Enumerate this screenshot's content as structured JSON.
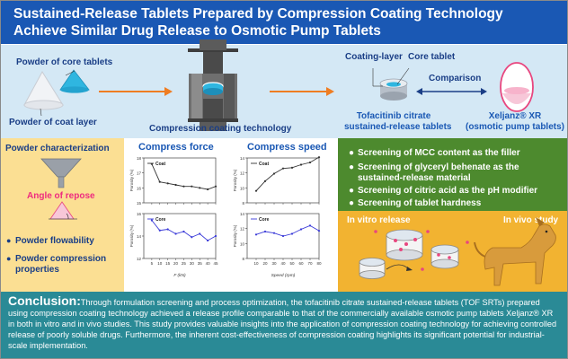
{
  "header": {
    "title": "Sustained-Release Tablets Prepared by Compression Coating Technology Achieve Similar Drug Release to Osmotic Pump Tablets"
  },
  "top": {
    "powder_core": "Powder of core tablets",
    "powder_coat": "Powder of coat layer",
    "compression_label": "Compression coating technology",
    "coating_layer": "Coating-layer",
    "core_tablet": "Core tablet",
    "comparison": "Comparison",
    "tofa_line1": "Tofacitinib citrate",
    "tofa_line2": "sustained-release tablets",
    "xel_line1": "Xeljanz® XR",
    "xel_line2": "(osmotic pump tablets)"
  },
  "powder_panel": {
    "title": "Powder characterization",
    "angle_label": "Angle of repose",
    "items": [
      "Powder flowability",
      "Powder compression properties"
    ]
  },
  "chart_data": [
    {
      "type": "line",
      "title": "Compress force",
      "xlabel": "F (kN)",
      "ylabel": "Porosity (%)",
      "x": [
        5,
        10,
        15,
        20,
        25,
        30,
        35,
        40,
        45
      ],
      "xlim": [
        0,
        45
      ],
      "panels": [
        {
          "series": [
            {
              "name": "Coat",
              "values": [
                17.6,
                16.4,
                16.3,
                16.2,
                16.1,
                16.1,
                16.0,
                15.9,
                16.1
              ]
            }
          ],
          "ylim": [
            15,
            18
          ],
          "yticks": [
            15,
            16,
            17,
            18
          ]
        },
        {
          "series": [
            {
              "name": "Core",
              "values": [
                15.4,
                14.5,
                14.6,
                14.2,
                14.4,
                13.9,
                14.2,
                13.6,
                14.0
              ]
            }
          ],
          "ylim": [
            12,
            16
          ],
          "yticks": [
            12,
            14,
            16
          ]
        }
      ]
    },
    {
      "type": "line",
      "title": "Compress speed",
      "xlabel": "Speed (rpm)",
      "ylabel": "Porosity (%)",
      "x": [
        10,
        20,
        30,
        40,
        50,
        60,
        70,
        80
      ],
      "xlim": [
        0,
        80
      ],
      "panels": [
        {
          "series": [
            {
              "name": "Coat",
              "values": [
                9.6,
                10.9,
                11.9,
                12.6,
                12.7,
                13.1,
                13.4,
                14.1
              ]
            }
          ],
          "ylim": [
            8,
            14
          ],
          "yticks": [
            8,
            10,
            12,
            14
          ]
        },
        {
          "series": [
            {
              "name": "Core",
              "values": [
                11.2,
                11.6,
                11.4,
                11.0,
                11.3,
                11.9,
                12.4,
                11.7
              ]
            }
          ],
          "ylim": [
            8,
            14
          ],
          "yticks": [
            8,
            10,
            12,
            14
          ]
        }
      ]
    }
  ],
  "screening": {
    "items": [
      "Screening of MCC content as the filler",
      "Screening of glyceryl behenate as the sustained-release material",
      "Screening of citric acid as the pH modifier",
      "Screening of tablet hardness"
    ]
  },
  "vivo": {
    "in_vitro": "In vitro release",
    "in_vivo": "In vivo study"
  },
  "conclusion": {
    "lead": "Conclusion:",
    "text": "Through formulation screening and process optimization, the tofacitinib citrate sustained-release tablets (TOF SRTs) prepared using compression coating technology achieved a release profile comparable to that of the commercially available osmotic pump tablets Xeljanz® XR in both in vitro and in vivo studies. This study provides valuable insights into the application of compression coating technology for achieving controlled release of poorly soluble drugs. Furthermore, the inherent cost-effectiveness of compression coating highlights its significant potential for industrial-scale implementation."
  },
  "colors": {
    "header_bg": "#1a58b4",
    "top_band": "#d4e8f5",
    "powder_panel": "#fbdf93",
    "screening_panel": "#4d8a2e",
    "vivo_panel": "#f2b331",
    "conclusion_bg": "#2a8a96",
    "arrow": "#ef7d22",
    "coat_line": "#333333",
    "core_line": "#3a3ad8"
  }
}
